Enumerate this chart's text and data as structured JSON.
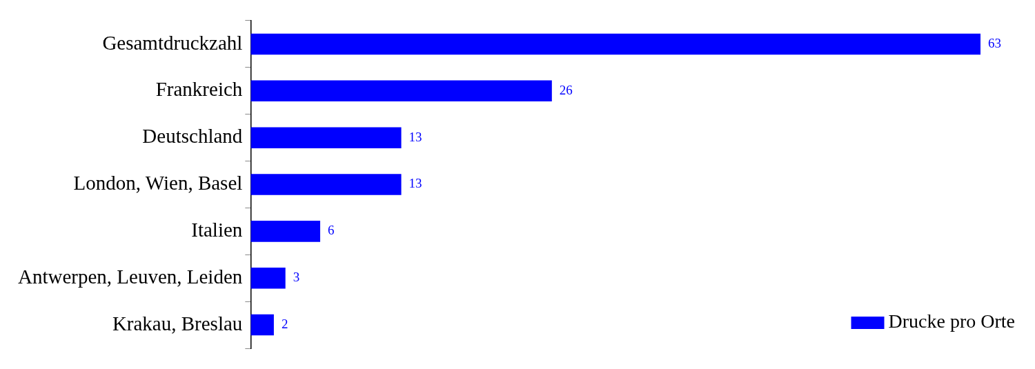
{
  "chart_data": {
    "type": "bar",
    "orientation": "horizontal",
    "categories": [
      "Gesamtdruckzahl",
      "Frankreich",
      "Deutschland",
      "London, Wien, Basel",
      "Italien",
      "Antwerpen, Leuven, Leiden",
      "Krakau, Breslau"
    ],
    "series": [
      {
        "name": "Drucke pro Orte",
        "color": "#0000ff",
        "values": [
          63,
          26,
          13,
          13,
          6,
          3,
          2
        ]
      }
    ],
    "data_labels": true,
    "legend": "bottom right",
    "tick_labels": "y"
  }
}
